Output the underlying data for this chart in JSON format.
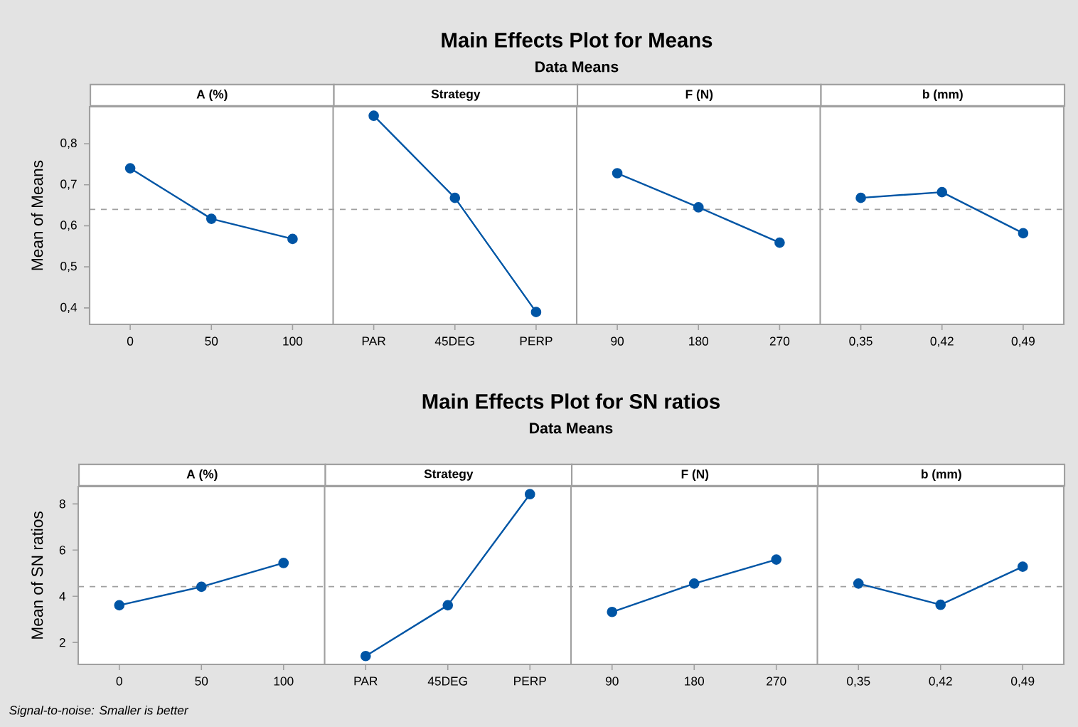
{
  "chart_data": [
    {
      "type": "line",
      "title": "Main Effects Plot for Means",
      "subtitle": "Data Means",
      "ylabel": "Mean of Means",
      "categories": [
        "0",
        "50",
        "100",
        "PAR",
        "45DEG",
        "PERP",
        "90",
        "180",
        "270",
        "0,35",
        "0,42",
        "0,49"
      ],
      "marker": "circle",
      "ylim": [
        0.36,
        0.89
      ],
      "yticks": [
        {
          "value": 0.4,
          "label": "0,4"
        },
        {
          "value": 0.5,
          "label": "0,5"
        },
        {
          "value": 0.6,
          "label": "0,6"
        },
        {
          "value": 0.7,
          "label": "0,7"
        },
        {
          "value": 0.8,
          "label": "0,8"
        }
      ],
      "ref_lines": [
        {
          "axis": "y",
          "value": 0.64,
          "color": "#a0a0a0",
          "line_style": "dashed"
        }
      ],
      "annotations": [
        "A (%)",
        "Strategy",
        "F (N)",
        "b (mm)"
      ],
      "series": [
        {
          "color": "#0055a5",
          "values": [
            0.74,
            0.617,
            0.568,
            null,
            null,
            null,
            null,
            null,
            null,
            null,
            null,
            null
          ]
        },
        {
          "color": "#0055a5",
          "values": [
            null,
            null,
            null,
            0.868,
            0.668,
            0.39,
            null,
            null,
            null,
            null,
            null,
            null
          ]
        },
        {
          "color": "#0055a5",
          "values": [
            null,
            null,
            null,
            null,
            null,
            null,
            0.728,
            0.645,
            0.559,
            null,
            null,
            null
          ]
        },
        {
          "color": "#0055a5",
          "values": [
            null,
            null,
            null,
            null,
            null,
            null,
            null,
            null,
            null,
            0.668,
            0.682,
            0.582
          ]
        }
      ]
    },
    {
      "type": "line",
      "title": "Main Effects Plot for SN ratios",
      "subtitle": "Data Means",
      "ylabel": "Mean of SN ratios",
      "categories": [
        "0",
        "50",
        "100",
        "PAR",
        "45DEG",
        "PERP",
        "90",
        "180",
        "270",
        "0,35",
        "0,42",
        "0,49"
      ],
      "marker": "circle",
      "ylim": [
        1.05,
        8.75
      ],
      "yticks": [
        2,
        4,
        6,
        8
      ],
      "ref_lines": [
        {
          "axis": "y",
          "value": 4.42,
          "color": "#a0a0a0",
          "line_style": "dashed"
        }
      ],
      "annotations": [
        "A (%)",
        "Strategy",
        "F (N)",
        "b (mm)",
        "Signal-to-noise: Smaller is better"
      ],
      "series": [
        {
          "color": "#0055a5",
          "values": [
            3.61,
            4.41,
            5.44,
            null,
            null,
            null,
            null,
            null,
            null,
            null,
            null,
            null
          ]
        },
        {
          "color": "#0055a5",
          "values": [
            null,
            null,
            null,
            1.41,
            3.61,
            8.42,
            null,
            null,
            null,
            null,
            null,
            null
          ]
        },
        {
          "color": "#0055a5",
          "values": [
            null,
            null,
            null,
            null,
            null,
            null,
            3.32,
            4.55,
            5.59,
            null,
            null,
            null
          ]
        },
        {
          "color": "#0055a5",
          "values": [
            null,
            null,
            null,
            null,
            null,
            null,
            null,
            null,
            null,
            4.55,
            3.63,
            5.28
          ]
        }
      ]
    }
  ]
}
